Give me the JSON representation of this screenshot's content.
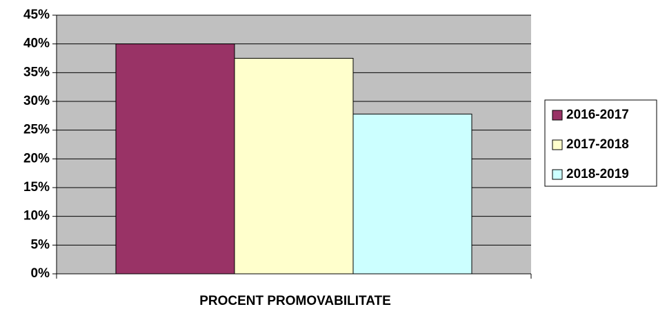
{
  "chart_data": {
    "type": "bar",
    "categories": [
      "PROCENT PROMOVABILITATE"
    ],
    "series": [
      {
        "name": "2016-2017",
        "color": "#993366",
        "values": [
          40
        ]
      },
      {
        "name": "2017-2018",
        "color": "#ffffcc",
        "values": [
          37.5
        ]
      },
      {
        "name": "2018-2019",
        "color": "#ccffff",
        "values": [
          27.8
        ]
      }
    ],
    "ylim": [
      0,
      45
    ],
    "yticks": [
      {
        "value": 0,
        "label": "0%"
      },
      {
        "value": 5,
        "label": "5%"
      },
      {
        "value": 10,
        "label": "10%"
      },
      {
        "value": 15,
        "label": "15%"
      },
      {
        "value": 20,
        "label": "20%"
      },
      {
        "value": 25,
        "label": "25%"
      },
      {
        "value": 30,
        "label": "30%"
      },
      {
        "value": 35,
        "label": "35%"
      },
      {
        "value": 40,
        "label": "40%"
      },
      {
        "value": 45,
        "label": "45%"
      }
    ],
    "grid": true,
    "plot_background": "#c0c0c0",
    "legend": "right"
  }
}
